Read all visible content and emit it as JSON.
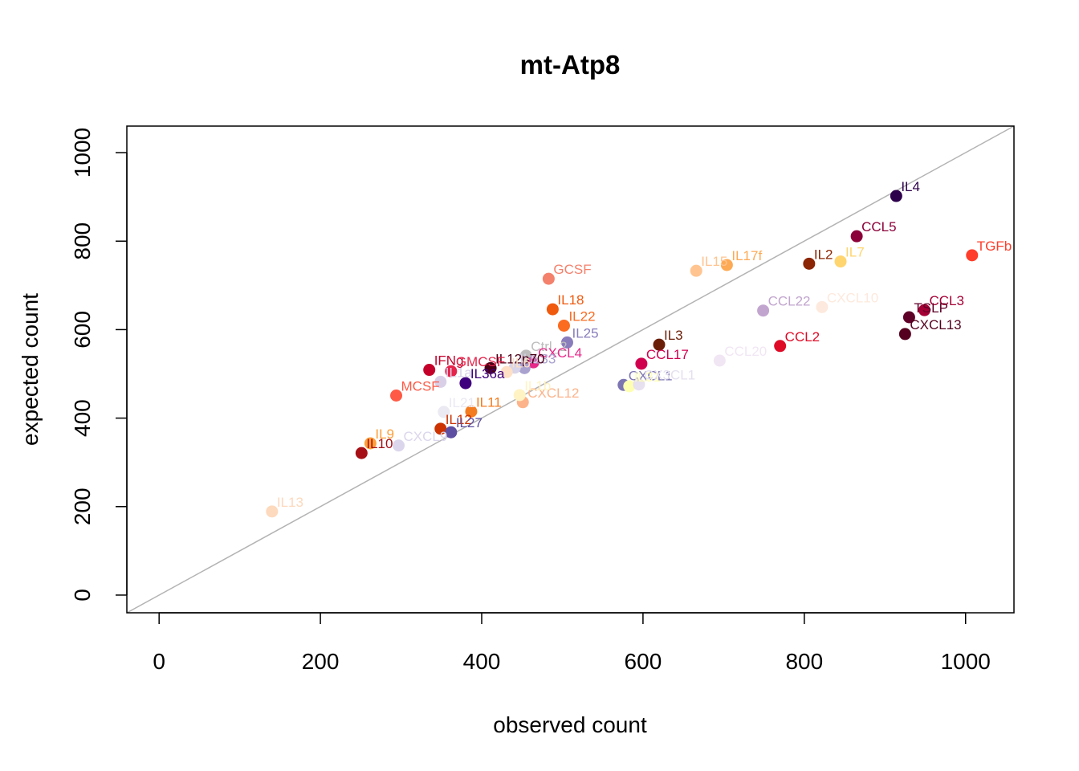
{
  "chart_data": {
    "type": "scatter",
    "title": "mt-Atp8",
    "xlabel": "observed count",
    "ylabel": "expected count",
    "xlim": [
      -40,
      1060
    ],
    "ylim": [
      -40,
      1060
    ],
    "xticks": [
      0,
      200,
      400,
      600,
      800,
      1000
    ],
    "yticks": [
      0,
      200,
      400,
      600,
      800,
      1000
    ],
    "grid": false,
    "reference_line": "y = x",
    "reference_line_color": "#b3b3b3",
    "points": [
      {
        "label": "IL4",
        "x": 914,
        "y": 902,
        "color": "#2d004b"
      },
      {
        "label": "CCL5",
        "x": 865,
        "y": 811,
        "color": "#8b0038"
      },
      {
        "label": "TGFb",
        "x": 1008,
        "y": 768,
        "color": "#ff3d2a"
      },
      {
        "label": "IL2",
        "x": 806,
        "y": 749,
        "color": "#8b2503"
      },
      {
        "label": "IL7",
        "x": 845,
        "y": 754,
        "color": "#ffd56f"
      },
      {
        "label": "IL15",
        "x": 666,
        "y": 733,
        "color": "#ffc490"
      },
      {
        "label": "IL17f",
        "x": 704,
        "y": 746,
        "color": "#fdaa55"
      },
      {
        "label": "GCSF",
        "x": 483,
        "y": 715,
        "color": "#f4816c"
      },
      {
        "label": "CCL22",
        "x": 749,
        "y": 643,
        "color": "#c2a5cf"
      },
      {
        "label": "CXCL10",
        "x": 822,
        "y": 651,
        "color": "#fde9dd"
      },
      {
        "label": "CCL3",
        "x": 949,
        "y": 644,
        "color": "#a50035"
      },
      {
        "label": "TSLP",
        "x": 930,
        "y": 628,
        "color": "#5e0027"
      },
      {
        "label": "CXCL13",
        "x": 925,
        "y": 590,
        "color": "#54001e"
      },
      {
        "label": "IL18",
        "x": 488,
        "y": 646,
        "color": "#f05a0e"
      },
      {
        "label": "IL22",
        "x": 502,
        "y": 609,
        "color": "#fb6b20"
      },
      {
        "label": "IL25",
        "x": 506,
        "y": 571,
        "color": "#8a7dbc"
      },
      {
        "label": "Ctrl_2",
        "x": 455,
        "y": 541,
        "color": "#bdbdbd"
      },
      {
        "label": "IL3",
        "x": 620,
        "y": 566,
        "color": "#6b1e07"
      },
      {
        "label": "CCL2",
        "x": 770,
        "y": 563,
        "color": "#df0a26"
      },
      {
        "label": "CCL17",
        "x": 598,
        "y": 523,
        "color": "#d1004f"
      },
      {
        "label": "CCL20",
        "x": 695,
        "y": 530,
        "color": "#f1e6f4"
      },
      {
        "label": "CXCL4",
        "x": 464,
        "y": 526,
        "color": "#e7298a"
      },
      {
        "label": "IL33",
        "x": 453,
        "y": 513,
        "color": "#a9a2cf"
      },
      {
        "label": "IL5",
        "x": 441,
        "y": 514,
        "color": "#d8d4e9"
      },
      {
        "label": "IFNg",
        "x": 335,
        "y": 509,
        "color": "#c4002a"
      },
      {
        "label": "IL12p70",
        "x": 411,
        "y": 513,
        "color": "#4a0016"
      },
      {
        "label": "GMCSF",
        "x": 362,
        "y": 506,
        "color": "#e5244b"
      },
      {
        "label": "IL1a",
        "x": 349,
        "y": 482,
        "color": "#d9d0e8"
      },
      {
        "label": "IL36a",
        "x": 380,
        "y": 479,
        "color": "#3f007d"
      },
      {
        "label": "IL6",
        "x": 431,
        "y": 504,
        "color": "#fde0c5"
      },
      {
        "label": "CXCL1",
        "x": 576,
        "y": 475,
        "color": "#7c75b2"
      },
      {
        "label": "IL31",
        "x": 583,
        "y": 472,
        "color": "#ffffb2"
      },
      {
        "label": "CX3CL1",
        "x": 595,
        "y": 476,
        "color": "#e6e0ef"
      },
      {
        "label": "MCSF",
        "x": 294,
        "y": 451,
        "color": "#ff5a46"
      },
      {
        "label": "CXCL12",
        "x": 451,
        "y": 436,
        "color": "#fdb38a"
      },
      {
        "label": "IL1b",
        "x": 447,
        "y": 452,
        "color": "#fff3c3"
      },
      {
        "label": "IL21",
        "x": 353,
        "y": 414,
        "color": "#ebe9f2"
      },
      {
        "label": "IL11",
        "x": 387,
        "y": 415,
        "color": "#f47c20"
      },
      {
        "label": "IL12",
        "x": 349,
        "y": 376,
        "color": "#cc3300"
      },
      {
        "label": "IL27",
        "x": 362,
        "y": 368,
        "color": "#5e4fa2"
      },
      {
        "label": "IL9",
        "x": 262,
        "y": 343,
        "color": "#fd9f3a"
      },
      {
        "label": "CXCL9",
        "x": 297,
        "y": 338,
        "color": "#dcd6ec"
      },
      {
        "label": "IL10",
        "x": 251,
        "y": 321,
        "color": "#a50f15"
      },
      {
        "label": "IL13",
        "x": 140,
        "y": 189,
        "color": "#fdd9bd"
      }
    ]
  }
}
